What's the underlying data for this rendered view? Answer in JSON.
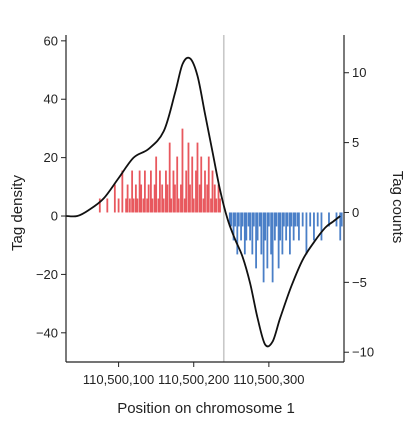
{
  "chart_data": {
    "type": "bar",
    "xlabel": "Position on chromosome 1",
    "ylabel_left": "Tag density",
    "ylabel_right": "Tag counts",
    "x_range": [
      110500030,
      110500400
    ],
    "x_ticks": [
      110500100,
      110500200,
      110500300
    ],
    "x_tick_labels": [
      "110,500,100",
      "110,500,200",
      "110,500,300"
    ],
    "y_left_range": [
      -50,
      62
    ],
    "y_left_ticks": [
      -40,
      -20,
      0,
      20,
      40,
      60
    ],
    "y_left_tick_labels": [
      "−40",
      "−20",
      "0",
      "20",
      "40",
      "60"
    ],
    "y_right_range": [
      -10.7,
      12.7
    ],
    "y_right_ticks": [
      -10,
      -5,
      0,
      5,
      10
    ],
    "y_right_tick_labels": [
      "−10",
      "−5",
      "0",
      "5",
      "10"
    ],
    "marker_x": 110500240,
    "colors": {
      "positive": "#e8585e",
      "negative": "#4a7fc7",
      "line": "#111111",
      "marker": "#c8c8c8",
      "axis": "#222222"
    },
    "density_curve": {
      "x": [
        110500030,
        110500045,
        110500060,
        110500080,
        110500100,
        110500120,
        110500140,
        110500160,
        110500175,
        110500185,
        110500195,
        110500205,
        110500215,
        110500225,
        110500235,
        110500245,
        110500255,
        110500265,
        110500275,
        110500285,
        110500295,
        110500305,
        110500315,
        110500330,
        110500345,
        110500360,
        110500375,
        110500385,
        110500395
      ],
      "y": [
        0,
        0,
        2,
        6,
        13,
        20,
        23,
        29,
        42,
        52,
        54,
        48,
        35,
        22,
        9,
        -1,
        -8,
        -14,
        -23,
        -35,
        -44,
        -43,
        -35,
        -24,
        -15,
        -9,
        -4,
        -2,
        0
      ]
    },
    "positive_counts": {
      "x": [
        110500075,
        110500085,
        110500095,
        110500100,
        110500105,
        110500110,
        110500112,
        110500115,
        110500118,
        110500120,
        110500123,
        110500125,
        110500128,
        110500130,
        110500133,
        110500135,
        110500138,
        110500140,
        110500143,
        110500145,
        110500148,
        110500150,
        110500153,
        110500155,
        110500158,
        110500160,
        110500163,
        110500165,
        110500168,
        110500170,
        110500173,
        110500175,
        110500178,
        110500180,
        110500183,
        110500185,
        110500188,
        110500190,
        110500193,
        110500195,
        110500198,
        110500200,
        110500203,
        110500205,
        110500208,
        110500210,
        110500213,
        110500215,
        110500218,
        110500220,
        110500223,
        110500225,
        110500228,
        110500230,
        110500233,
        110500235
      ],
      "y": [
        1,
        1,
        2,
        1,
        3,
        1,
        2,
        1,
        3,
        1,
        2,
        1,
        3,
        2,
        1,
        3,
        1,
        2,
        3,
        1,
        2,
        4,
        1,
        3,
        2,
        1,
        3,
        2,
        5,
        1,
        3,
        2,
        4,
        1,
        2,
        6,
        1,
        3,
        5,
        2,
        4,
        1,
        3,
        5,
        2,
        4,
        1,
        3,
        2,
        4,
        1,
        3,
        2,
        1,
        2,
        1
      ]
    },
    "negative_counts": {
      "x": [
        110500248,
        110500250,
        110500253,
        110500255,
        110500258,
        110500260,
        110500263,
        110500265,
        110500268,
        110500270,
        110500273,
        110500275,
        110500278,
        110500280,
        110500283,
        110500285,
        110500288,
        110500290,
        110500293,
        110500295,
        110500298,
        110500300,
        110500303,
        110500305,
        110500308,
        110500310,
        110500313,
        110500315,
        110500318,
        110500320,
        110500323,
        110500325,
        110500328,
        110500330,
        110500333,
        110500335,
        110500338,
        110500340,
        110500345,
        110500350,
        110500355,
        110500360,
        110500365,
        110500370,
        110500380,
        110500390,
        110500395,
        110500397
      ],
      "y": [
        -1,
        -1,
        -2,
        -1,
        -3,
        -1,
        -2,
        -1,
        -3,
        -2,
        -1,
        -2,
        -3,
        -1,
        -4,
        -2,
        -1,
        -3,
        -5,
        -2,
        -4,
        -1,
        -3,
        -5,
        -2,
        -1,
        -4,
        -2,
        -3,
        -1,
        -2,
        -1,
        -3,
        -1,
        -2,
        -1,
        -1,
        -2,
        -1,
        -3,
        -1,
        -2,
        -1,
        -2,
        -1,
        -1,
        -2,
        -1
      ]
    }
  }
}
